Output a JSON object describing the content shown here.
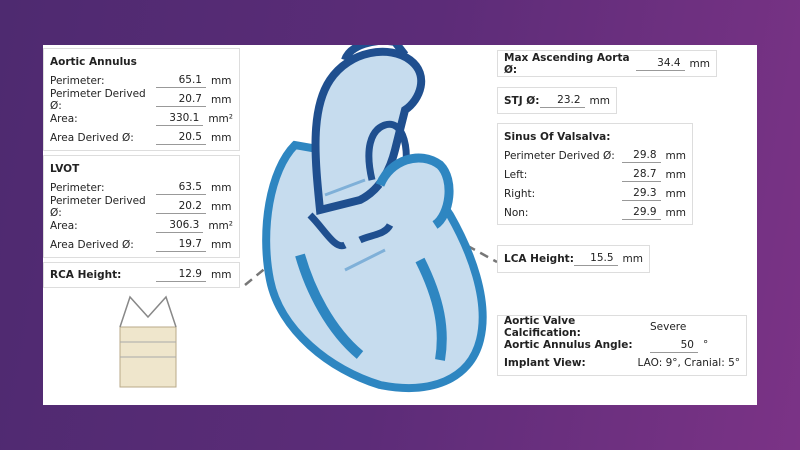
{
  "aortic_annulus": {
    "title": "Aortic Annulus",
    "rows": [
      {
        "label": "Perimeter:",
        "value": "65.1",
        "unit": "mm"
      },
      {
        "label": "Perimeter Derived Ø:",
        "value": "20.7",
        "unit": "mm"
      },
      {
        "label": "Area:",
        "value": "330.1",
        "unit": "mm²"
      },
      {
        "label": "Area Derived Ø:",
        "value": "20.5",
        "unit": "mm"
      }
    ]
  },
  "lvot": {
    "title": "LVOT",
    "rows": [
      {
        "label": "Perimeter:",
        "value": "63.5",
        "unit": "mm"
      },
      {
        "label": "Perimeter Derived Ø:",
        "value": "20.2",
        "unit": "mm"
      },
      {
        "label": "Area:",
        "value": "306.3",
        "unit": "mm²"
      },
      {
        "label": "Area Derived Ø:",
        "value": "19.7",
        "unit": "mm"
      }
    ]
  },
  "rca": {
    "label": "RCA Height:",
    "value": "12.9",
    "unit": "mm"
  },
  "max_asc": {
    "label": "Max Ascending Aorta Ø:",
    "value": "34.4",
    "unit": "mm"
  },
  "stj": {
    "label": "STJ Ø:",
    "value": "23.2",
    "unit": "mm"
  },
  "sinus": {
    "title": "Sinus Of Valsalva:",
    "rows": [
      {
        "label": "Perimeter Derived Ø:",
        "value": "29.8",
        "unit": "mm"
      },
      {
        "label": "Left:",
        "value": "28.7",
        "unit": "mm"
      },
      {
        "label": "Right:",
        "value": "29.3",
        "unit": "mm"
      },
      {
        "label": "Non:",
        "value": "29.9",
        "unit": "mm"
      }
    ]
  },
  "lca": {
    "label": "LCA Height:",
    "value": "15.5",
    "unit": "mm"
  },
  "summary": {
    "calcification_label": "Aortic Valve Calcification:",
    "calcification_value": "Severe",
    "angle_label": "Aortic Annulus Angle:",
    "angle_value": "50",
    "angle_unit": "°",
    "view_label": "Implant View:",
    "view_value": "LAO: 9°, Cranial: 5°"
  },
  "colors": {
    "heart_dark": "#1f4f8f",
    "heart_mid": "#2e86c1",
    "heart_light": "#c6dcee",
    "arrow": "#7fb0d8"
  }
}
